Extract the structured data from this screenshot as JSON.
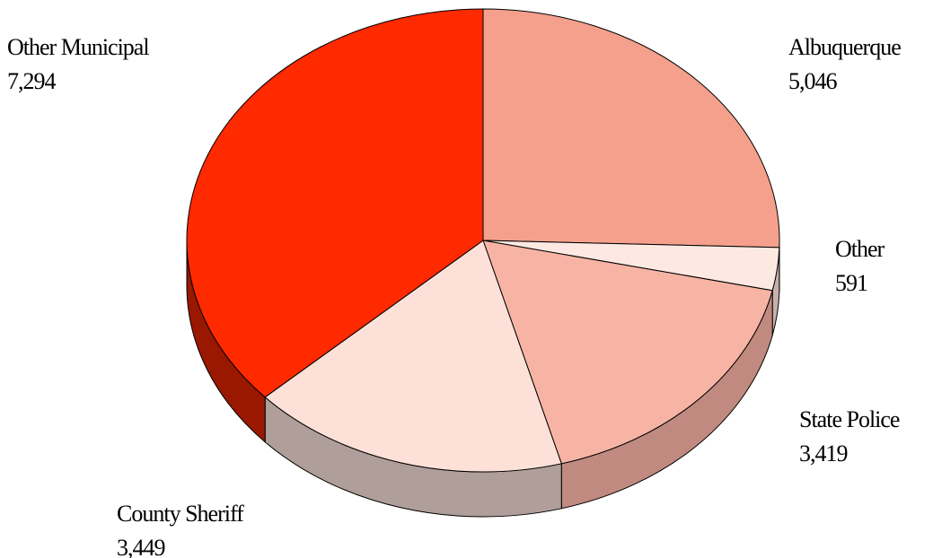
{
  "chart_data": {
    "type": "pie",
    "categories": [
      "Albuquerque",
      "Other",
      "State Police",
      "County Sheriff",
      "Other Municipal"
    ],
    "values": [
      5046,
      591,
      3419,
      3449,
      7294
    ],
    "value_labels": [
      "5,046",
      "591",
      "3,419",
      "3,449",
      "7,294"
    ],
    "colors": [
      "#f5a08c",
      "#fde9e2",
      "#f7b4a4",
      "#fde1d8",
      "#ff2a00"
    ],
    "side_colors": [
      "#c07a6a",
      "#c8b0aa",
      "#c08a80",
      "#b09e9a",
      "#9a1800"
    ]
  }
}
